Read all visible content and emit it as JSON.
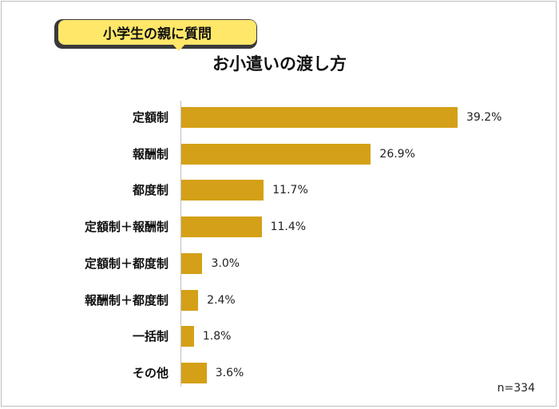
{
  "badge": {
    "text": "小学生の親に質問"
  },
  "chart_data": {
    "type": "bar",
    "orientation": "horizontal",
    "title": "お小遣いの渡し方",
    "categories": [
      "定額制",
      "報酬制",
      "都度制",
      "定額制＋報酬制",
      "定額制＋都度制",
      "報酬制＋都度制",
      "一括制",
      "その他"
    ],
    "values": [
      39.2,
      26.9,
      11.7,
      11.4,
      3.0,
      2.4,
      1.8,
      3.6
    ],
    "value_labels": [
      "39.2%",
      "26.9%",
      "11.7%",
      "11.4%",
      "3.0%",
      "2.4%",
      "1.8%",
      "3.6%"
    ],
    "xlim": [
      0,
      45
    ],
    "bar_color": "#d4a017",
    "grid": false,
    "legend": "none",
    "note": "n=334"
  }
}
